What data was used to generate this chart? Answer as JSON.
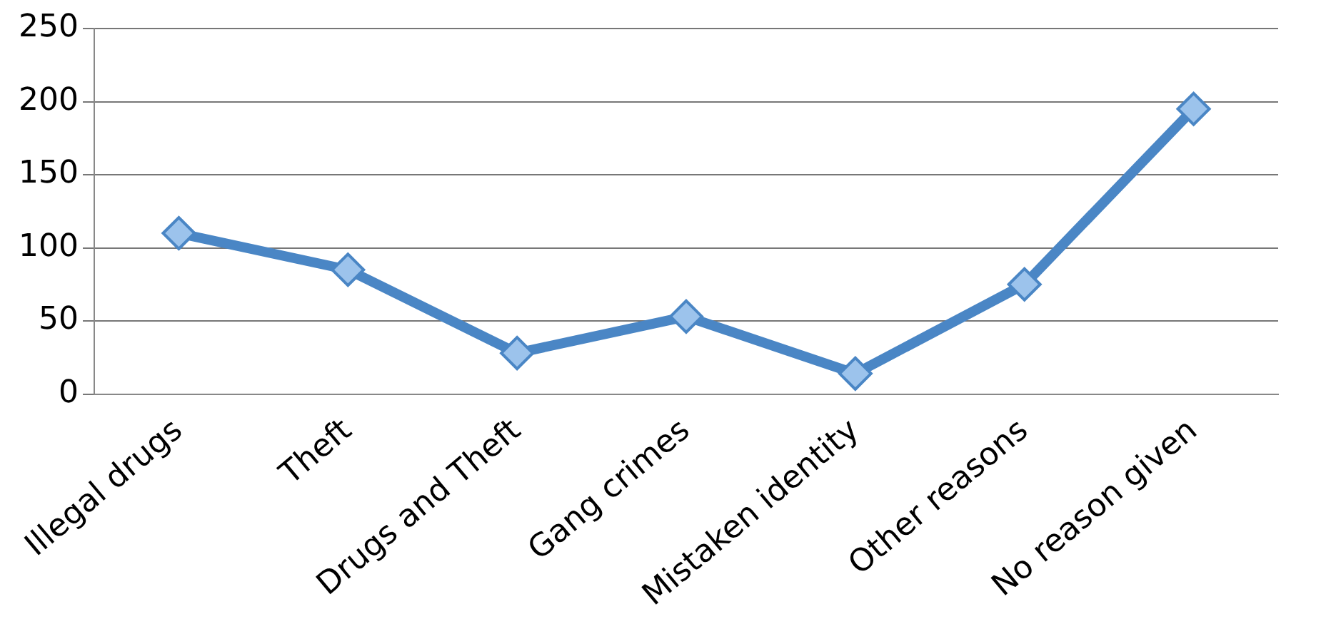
{
  "chart_data": {
    "type": "line",
    "categories": [
      "Illegal drugs",
      "Theft",
      "Drugs and Theft",
      "Gang crimes",
      "Mistaken identity",
      "Other reasons",
      "No reason given"
    ],
    "series": [
      {
        "color": "#4a86c5",
        "values": [
          110,
          85,
          28,
          53,
          14,
          75,
          195
        ]
      }
    ],
    "ylim": [
      0,
      250
    ],
    "yticks": [
      0,
      50,
      100,
      150,
      200,
      250
    ],
    "grid": "y",
    "legend": false,
    "marker": "diamond",
    "line_style": "solid"
  }
}
